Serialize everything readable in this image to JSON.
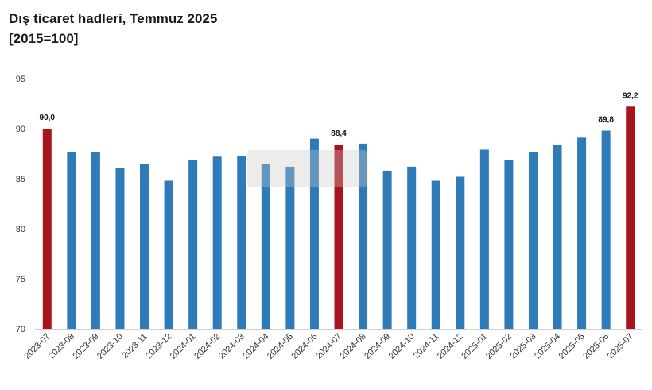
{
  "title": "Dış ticaret hadleri, Temmuz 2025",
  "subtitle": "[2015=100]",
  "colors": {
    "normal": "#2e7bb8",
    "highlight": "#a8141c"
  },
  "chart_data": {
    "type": "bar",
    "categories": [
      "2023-07",
      "2023-08",
      "2023-09",
      "2023-10",
      "2023-11",
      "2023-12",
      "2024-01",
      "2024-02",
      "2024-03",
      "2024-04",
      "2024-05",
      "2024-06",
      "2024-07",
      "2024-08",
      "2024-09",
      "2024-10",
      "2024-11",
      "2024-12",
      "2025-01",
      "2025-02",
      "2025-03",
      "2025-04",
      "2025-05",
      "2025-06",
      "2025-07"
    ],
    "values": [
      90.0,
      87.7,
      87.7,
      86.1,
      86.5,
      84.8,
      86.9,
      87.2,
      87.3,
      86.5,
      86.2,
      89.0,
      88.4,
      88.5,
      85.8,
      86.2,
      84.8,
      85.2,
      87.9,
      86.9,
      87.7,
      88.4,
      89.1,
      89.8,
      92.2
    ],
    "highlight_categories": [
      "2023-07",
      "2024-07",
      "2025-07"
    ],
    "data_labels": [
      {
        "category": "2023-07",
        "text": "90,0"
      },
      {
        "category": "2024-07",
        "text": "88,4"
      },
      {
        "category": "2025-06",
        "text": "89,8"
      },
      {
        "category": "2025-07",
        "text": "92,2"
      }
    ],
    "ylim": [
      70,
      95
    ],
    "yticks": [
      70,
      75,
      80,
      85,
      90,
      95
    ],
    "xlabel": "",
    "ylabel": "",
    "grid": false,
    "legend": "none"
  }
}
